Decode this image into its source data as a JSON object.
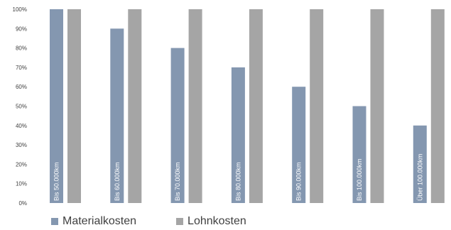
{
  "chart_data": {
    "type": "bar",
    "categories": [
      "Bis 50.000km",
      "Bis 60.000km",
      "Bis 70.000km",
      "Bis 80.000km",
      "Bis 90.000km",
      "Bis 100.000km",
      "Über 100.000km"
    ],
    "series": [
      {
        "name": "Materialkosten",
        "values": [
          100,
          90,
          80,
          70,
          60,
          50,
          40
        ],
        "color": "#8497b0"
      },
      {
        "name": "Lohnkosten",
        "values": [
          100,
          100,
          100,
          100,
          100,
          100,
          100
        ],
        "color": "#a5a5a5"
      }
    ],
    "ylim": [
      0,
      100
    ],
    "yticks": [
      "0%",
      "10%",
      "20%",
      "30%",
      "40%",
      "50%",
      "60%",
      "70%",
      "80%",
      "90%",
      "100%"
    ],
    "grid": false,
    "legend": "bottom-left"
  }
}
